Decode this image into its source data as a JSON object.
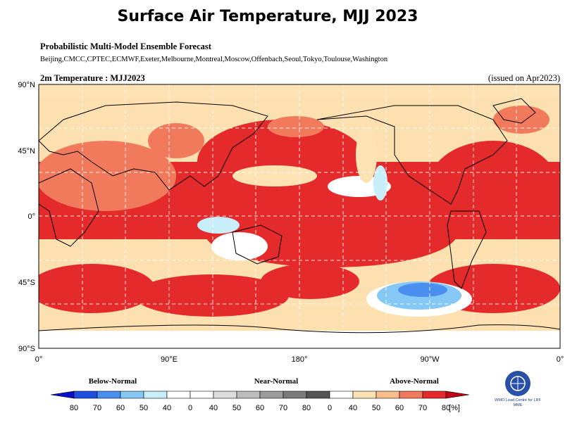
{
  "title": "Surface Air Temperature, MJJ 2023",
  "subtitle": "Probabilistic Multi-Model Ensemble Forecast",
  "centres": "Beijing,CMCC,CPTEC,ECMWF,Exeter,Melbourne,Montreal,Moscow,Offenbach,Seoul,Tokyo,Toulouse,Washington",
  "map": {
    "label": "2m Temperature : MJJ2023",
    "issued": "(issued on Apr2023)",
    "lat_labels": [
      "90°N",
      "45°N",
      "0°",
      "45°S",
      "90°S"
    ],
    "lon_labels": [
      "0°",
      "90°E",
      "180°",
      "90°W",
      "0°"
    ]
  },
  "legend": {
    "groups": [
      "Below-Normal",
      "Near-Normal",
      "Above-Normal"
    ],
    "labels": [
      "80",
      "70",
      "60",
      "50",
      "40",
      "0",
      "40",
      "50",
      "60",
      "70",
      "80",
      "0",
      "40",
      "50",
      "60",
      "70",
      "80"
    ],
    "unit": "[%]",
    "colors": [
      "#0a10c8",
      "#1f4fe0",
      "#4a8ff0",
      "#86c8f5",
      "#c8eefa",
      "#ffffff",
      "#ffffff",
      "#dcdcdc",
      "#bdbdbd",
      "#9c9c9c",
      "#7a7a7a",
      "#555555",
      "#ffffff",
      "#fde3b4",
      "#fbbd8a",
      "#f27a5c",
      "#e42a2a",
      "#c00018"
    ]
  },
  "logo": "WMO Lead Centre for LRF MME"
}
